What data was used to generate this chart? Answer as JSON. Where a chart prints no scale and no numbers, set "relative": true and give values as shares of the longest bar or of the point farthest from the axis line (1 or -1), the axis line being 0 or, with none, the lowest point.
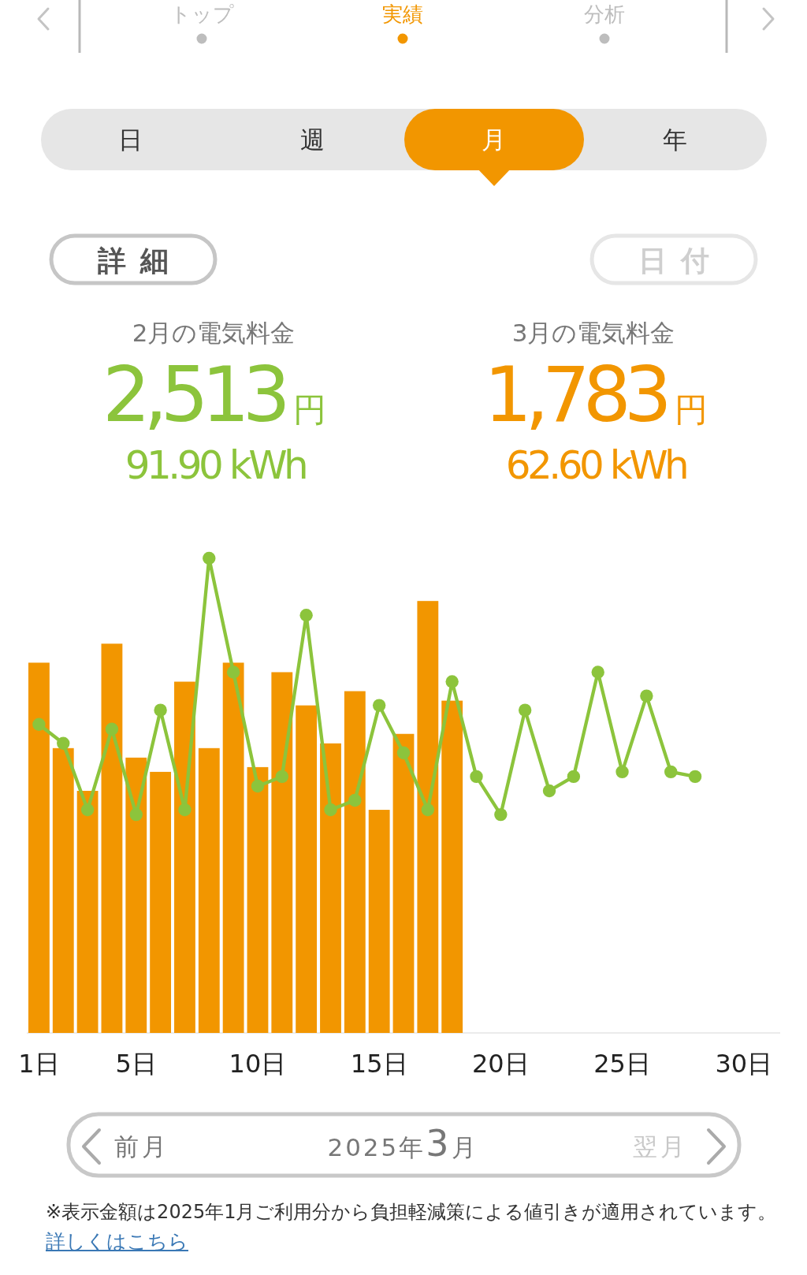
{
  "chart_data": {
    "type": "bar",
    "relative": true,
    "categories": [
      "1日",
      null,
      null,
      null,
      "5日",
      null,
      null,
      null,
      null,
      "10日",
      null,
      null,
      null,
      null,
      "15日",
      null,
      null,
      null,
      null,
      "20日",
      null,
      null,
      null,
      null,
      "25日",
      null,
      null,
      null,
      null,
      "30日",
      null
    ],
    "series": [
      {
        "color": "#f29600",
        "values": [
          0.78,
          0.6,
          0.51,
          0.82,
          0.58,
          0.55,
          0.74,
          0.6,
          0.78,
          0.56,
          0.76,
          0.69,
          0.61,
          0.72,
          0.47,
          0.63,
          0.91,
          0.7,
          null,
          null,
          null,
          null,
          null,
          null,
          null,
          null,
          null,
          null,
          null,
          null,
          null
        ]
      },
      {
        "type": "line",
        "color": "#8cc43c",
        "marker": "circle",
        "line_style": "solid",
        "values": [
          0.65,
          0.61,
          0.47,
          0.64,
          0.46,
          0.68,
          0.47,
          1,
          0.76,
          0.52,
          0.54,
          0.88,
          0.47,
          0.49,
          0.69,
          0.59,
          0.47,
          0.74,
          0.54,
          0.46,
          0.68,
          0.51,
          0.54,
          0.76,
          0.55,
          0.71,
          0.55,
          0.54,
          null,
          null,
          null
        ]
      }
    ],
    "annotations": [
      "トップ",
      "実績",
      "分析",
      "日",
      "週",
      "月",
      "年",
      "詳細",
      "日付",
      "2月の電気料金",
      "2,513円",
      "91.90 kWh",
      "3月の電気料金",
      "1,783円",
      "62.60 kWh",
      "前月",
      "2025年3月",
      "翌月",
      "※表示金額は2025年1月ご利用分から負担軽減策による値引きが適用されています。",
      "詳しくはこちら"
    ]
  }
}
